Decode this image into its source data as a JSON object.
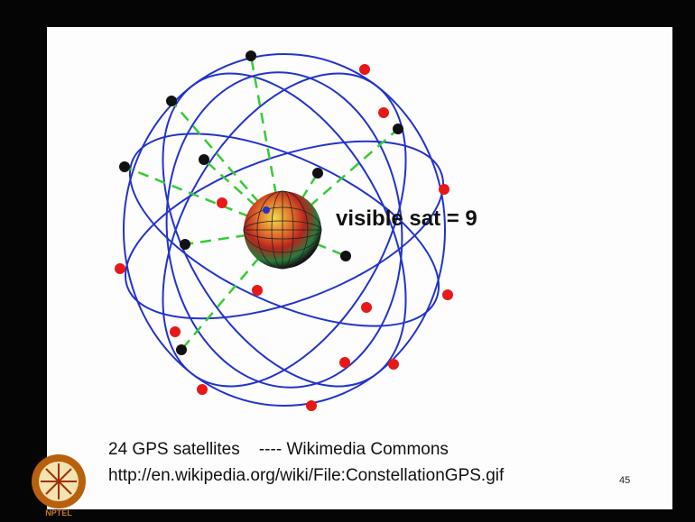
{
  "slide": {
    "note": "visible sat = 9",
    "caption": [
      "24 GPS satellites    ---- Wikimedia Commons",
      "http://en.wikipedia.org/wiki/File:ConstellationGPS.gif"
    ],
    "page_number": "45"
  },
  "logo": {
    "label": "NPTEL"
  }
}
